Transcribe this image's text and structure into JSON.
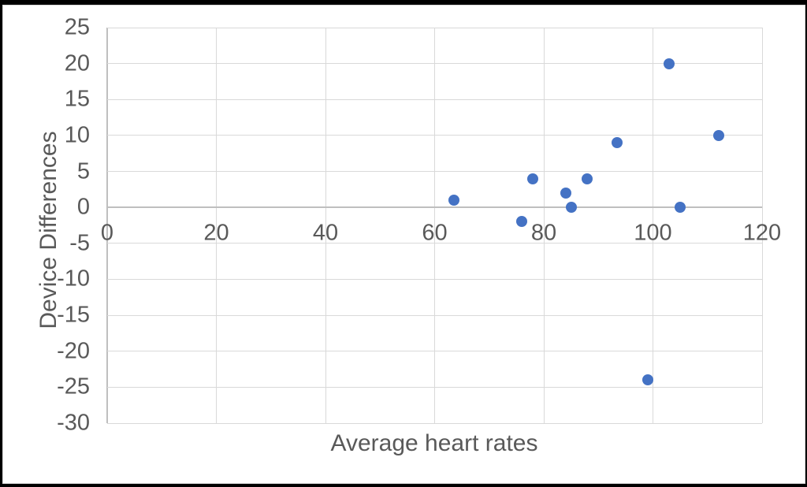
{
  "chart_data": {
    "type": "scatter",
    "title": "",
    "xlabel": "Average heart rates",
    "ylabel": "Device Differences",
    "points": [
      {
        "x": 63.5,
        "y": 1
      },
      {
        "x": 76,
        "y": -2
      },
      {
        "x": 78,
        "y": 4
      },
      {
        "x": 84,
        "y": 2
      },
      {
        "x": 85,
        "y": 0
      },
      {
        "x": 88,
        "y": 4
      },
      {
        "x": 93.5,
        "y": 9
      },
      {
        "x": 99,
        "y": -24
      },
      {
        "x": 103,
        "y": 20
      },
      {
        "x": 105,
        "y": 0
      },
      {
        "x": 112,
        "y": 10
      }
    ],
    "xlim": [
      0,
      120
    ],
    "ylim": [
      -30,
      25
    ],
    "x_ticks": [
      0,
      20,
      40,
      60,
      80,
      100,
      120
    ],
    "y_ticks": [
      25,
      20,
      15,
      10,
      5,
      0,
      -5,
      -10,
      -15,
      -20,
      -25,
      -30
    ],
    "grid": true,
    "legend": false,
    "marker_color": "#4472C4",
    "gridline_color": "#D9D9D9",
    "axis_line_color": "#BFBFBF",
    "text_color": "#595959",
    "frame_color": "#000000",
    "background": "#FFFFFF"
  }
}
